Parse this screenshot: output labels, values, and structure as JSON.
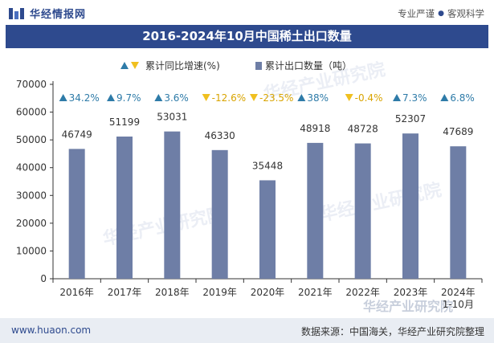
{
  "header": {
    "brand_name": "华经情报网",
    "slogan_a": "专业严谨",
    "slogan_sep": "●",
    "slogan_b": "客观科学"
  },
  "title": "2016-2024年10月中国稀土出口数量",
  "legend": {
    "growth_label": "累计同比增速(%)",
    "export_label": "累计出口数量（吨）"
  },
  "watermark": "华经产业研究院",
  "colors": {
    "bar": "#6e7ea6",
    "up": "#2e7ba8",
    "down": "#f0c020",
    "title_bg": "#2e4a8e"
  },
  "chart_data": {
    "type": "bar",
    "categories": [
      "2016年",
      "2017年",
      "2018年",
      "2019年",
      "2020年",
      "2021年",
      "2022年",
      "2023年",
      "2024年\n1-10月"
    ],
    "series": [
      {
        "name": "累计出口数量（吨）",
        "values": [
          46749,
          51199,
          53031,
          46330,
          35448,
          48918,
          48728,
          52307,
          47689
        ]
      },
      {
        "name": "累计同比增速(%)",
        "values": [
          34.2,
          9.7,
          3.6,
          -12.6,
          -23.5,
          38,
          -0.4,
          7.3,
          6.8
        ]
      }
    ],
    "growth_labels": [
      "34.2%",
      "9.7%",
      "3.6%",
      "-12.6%",
      "-23.5%",
      "38%",
      "-0.4%",
      "7.3%",
      "6.8%"
    ],
    "yticks": [
      "0",
      "10000",
      "20000",
      "30000",
      "40000",
      "50000",
      "60000",
      "70000"
    ],
    "ylim": [
      0,
      70000
    ],
    "grid": false,
    "legend_position": "top-center"
  },
  "footer": {
    "url": "www.huaon.com",
    "source": "数据来源：中国海关，华经产业研究院整理"
  }
}
